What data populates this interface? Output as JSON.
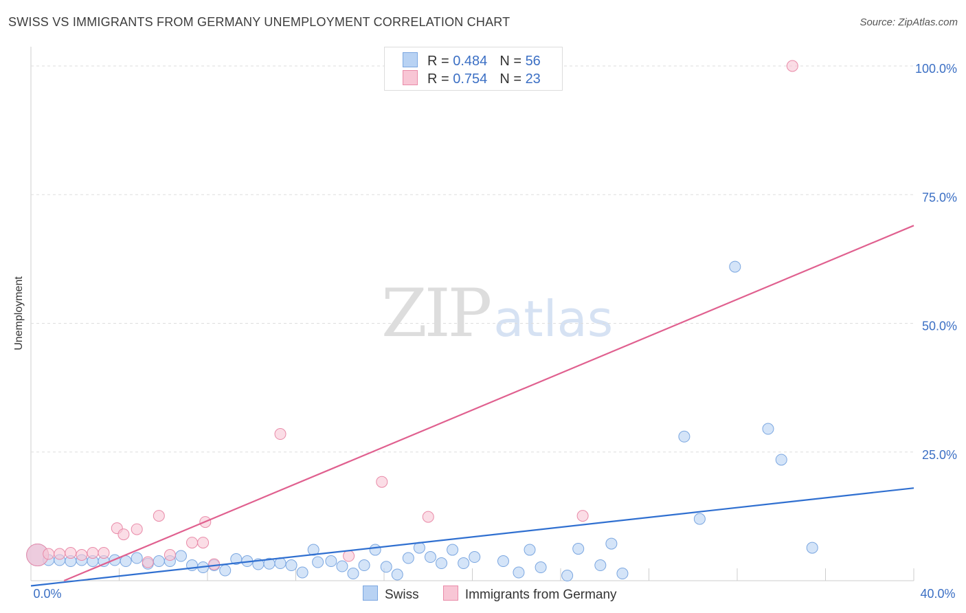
{
  "header": {
    "title": "SWISS VS IMMIGRANTS FROM GERMANY UNEMPLOYMENT CORRELATION CHART",
    "source": "Source: ZipAtlas.com"
  },
  "watermark": {
    "zip": "ZIP",
    "atlas": "atlas"
  },
  "colors": {
    "blue_fill": "#b8d2f3",
    "blue_stroke": "#7aa6e0",
    "blue_line": "#2f6fd0",
    "pink_fill": "#f8c6d5",
    "pink_stroke": "#e98aa8",
    "pink_line": "#e0608f",
    "tick_label": "#3b6fc4",
    "grid": "#dddddd"
  },
  "legend": {
    "rows": [
      {
        "r_label": "R = ",
        "r_value": "0.484",
        "n_label": "N = ",
        "n_value": "56"
      },
      {
        "r_label": "R = ",
        "r_value": "0.754",
        "n_label": "N = ",
        "n_value": "23"
      }
    ],
    "series": [
      "Swiss",
      "Immigrants from Germany"
    ]
  },
  "chart_data": {
    "type": "scatter",
    "title": "SWISS VS IMMIGRANTS FROM GERMANY UNEMPLOYMENT CORRELATION CHART",
    "xlabel": "",
    "ylabel": "Unemployment",
    "xlim": [
      0,
      40
    ],
    "ylim": [
      0,
      100
    ],
    "x_tick_labels": [
      {
        "value": 0,
        "label": "0.0%"
      },
      {
        "value": 40,
        "label": "40.0%"
      }
    ],
    "y_tick_labels": [
      {
        "value": 25,
        "label": "25.0%"
      },
      {
        "value": 50,
        "label": "50.0%"
      },
      {
        "value": 75,
        "label": "75.0%"
      },
      {
        "value": 100,
        "label": "100.0%"
      }
    ],
    "grid": "horizontal dashed",
    "legend_position": "top-center",
    "series": [
      {
        "name": "Swiss",
        "r": 0.484,
        "n": 56,
        "trendline": {
          "x": [
            0,
            40
          ],
          "y": [
            -1.0,
            18.0
          ]
        },
        "points": [
          {
            "x": 0.3,
            "y": 5.0,
            "big": true
          },
          {
            "x": 0.8,
            "y": 4.0
          },
          {
            "x": 1.3,
            "y": 4.0
          },
          {
            "x": 1.8,
            "y": 3.8
          },
          {
            "x": 2.3,
            "y": 4.0
          },
          {
            "x": 2.8,
            "y": 3.8
          },
          {
            "x": 3.3,
            "y": 3.8
          },
          {
            "x": 3.8,
            "y": 4.0
          },
          {
            "x": 4.3,
            "y": 3.8
          },
          {
            "x": 4.8,
            "y": 4.4
          },
          {
            "x": 5.3,
            "y": 3.3
          },
          {
            "x": 5.8,
            "y": 3.8
          },
          {
            "x": 6.3,
            "y": 3.8
          },
          {
            "x": 6.8,
            "y": 4.8
          },
          {
            "x": 7.3,
            "y": 3.0
          },
          {
            "x": 7.8,
            "y": 2.6
          },
          {
            "x": 8.3,
            "y": 3.0
          },
          {
            "x": 8.8,
            "y": 2.0
          },
          {
            "x": 9.3,
            "y": 4.2
          },
          {
            "x": 9.8,
            "y": 3.8
          },
          {
            "x": 10.3,
            "y": 3.2
          },
          {
            "x": 10.8,
            "y": 3.3
          },
          {
            "x": 11.3,
            "y": 3.4
          },
          {
            "x": 11.8,
            "y": 3.0
          },
          {
            "x": 12.3,
            "y": 1.6
          },
          {
            "x": 12.8,
            "y": 6.0
          },
          {
            "x": 13.0,
            "y": 3.6
          },
          {
            "x": 13.6,
            "y": 3.8
          },
          {
            "x": 14.1,
            "y": 2.8
          },
          {
            "x": 14.6,
            "y": 1.4
          },
          {
            "x": 15.1,
            "y": 3.0
          },
          {
            "x": 15.6,
            "y": 6.0
          },
          {
            "x": 16.1,
            "y": 2.7
          },
          {
            "x": 16.6,
            "y": 1.2
          },
          {
            "x": 17.1,
            "y": 4.4
          },
          {
            "x": 17.6,
            "y": 6.4
          },
          {
            "x": 18.1,
            "y": 4.6
          },
          {
            "x": 18.6,
            "y": 3.4
          },
          {
            "x": 19.1,
            "y": 6.0
          },
          {
            "x": 19.6,
            "y": 3.4
          },
          {
            "x": 20.1,
            "y": 4.6
          },
          {
            "x": 21.4,
            "y": 3.8
          },
          {
            "x": 22.1,
            "y": 1.6
          },
          {
            "x": 22.6,
            "y": 6.0
          },
          {
            "x": 23.1,
            "y": 2.6
          },
          {
            "x": 24.3,
            "y": 1.0
          },
          {
            "x": 24.8,
            "y": 6.2
          },
          {
            "x": 25.8,
            "y": 3.0
          },
          {
            "x": 26.3,
            "y": 7.2
          },
          {
            "x": 26.8,
            "y": 1.4
          },
          {
            "x": 29.6,
            "y": 28.0
          },
          {
            "x": 30.3,
            "y": 12.0
          },
          {
            "x": 31.9,
            "y": 61.0
          },
          {
            "x": 33.4,
            "y": 29.5
          },
          {
            "x": 34.0,
            "y": 23.5
          },
          {
            "x": 35.4,
            "y": 6.4
          }
        ]
      },
      {
        "name": "Immigrants from Germany",
        "r": 0.754,
        "n": 23,
        "trendline": {
          "x": [
            1.5,
            40
          ],
          "y": [
            0.0,
            69.0
          ]
        },
        "points": [
          {
            "x": 0.3,
            "y": 5.0,
            "big": true
          },
          {
            "x": 0.8,
            "y": 5.2
          },
          {
            "x": 1.3,
            "y": 5.2
          },
          {
            "x": 1.8,
            "y": 5.4
          },
          {
            "x": 2.3,
            "y": 5.0
          },
          {
            "x": 2.8,
            "y": 5.4
          },
          {
            "x": 3.3,
            "y": 5.4
          },
          {
            "x": 3.9,
            "y": 10.2
          },
          {
            "x": 4.2,
            "y": 9.0
          },
          {
            "x": 4.8,
            "y": 10.0
          },
          {
            "x": 5.3,
            "y": 3.6
          },
          {
            "x": 5.8,
            "y": 12.6
          },
          {
            "x": 6.3,
            "y": 5.0
          },
          {
            "x": 7.3,
            "y": 7.4
          },
          {
            "x": 7.9,
            "y": 11.4
          },
          {
            "x": 7.8,
            "y": 7.4
          },
          {
            "x": 8.3,
            "y": 3.2
          },
          {
            "x": 11.3,
            "y": 28.5
          },
          {
            "x": 14.4,
            "y": 4.8
          },
          {
            "x": 15.9,
            "y": 19.2
          },
          {
            "x": 18.0,
            "y": 12.4
          },
          {
            "x": 25.0,
            "y": 12.6
          },
          {
            "x": 34.5,
            "y": 100.0
          }
        ]
      }
    ]
  }
}
